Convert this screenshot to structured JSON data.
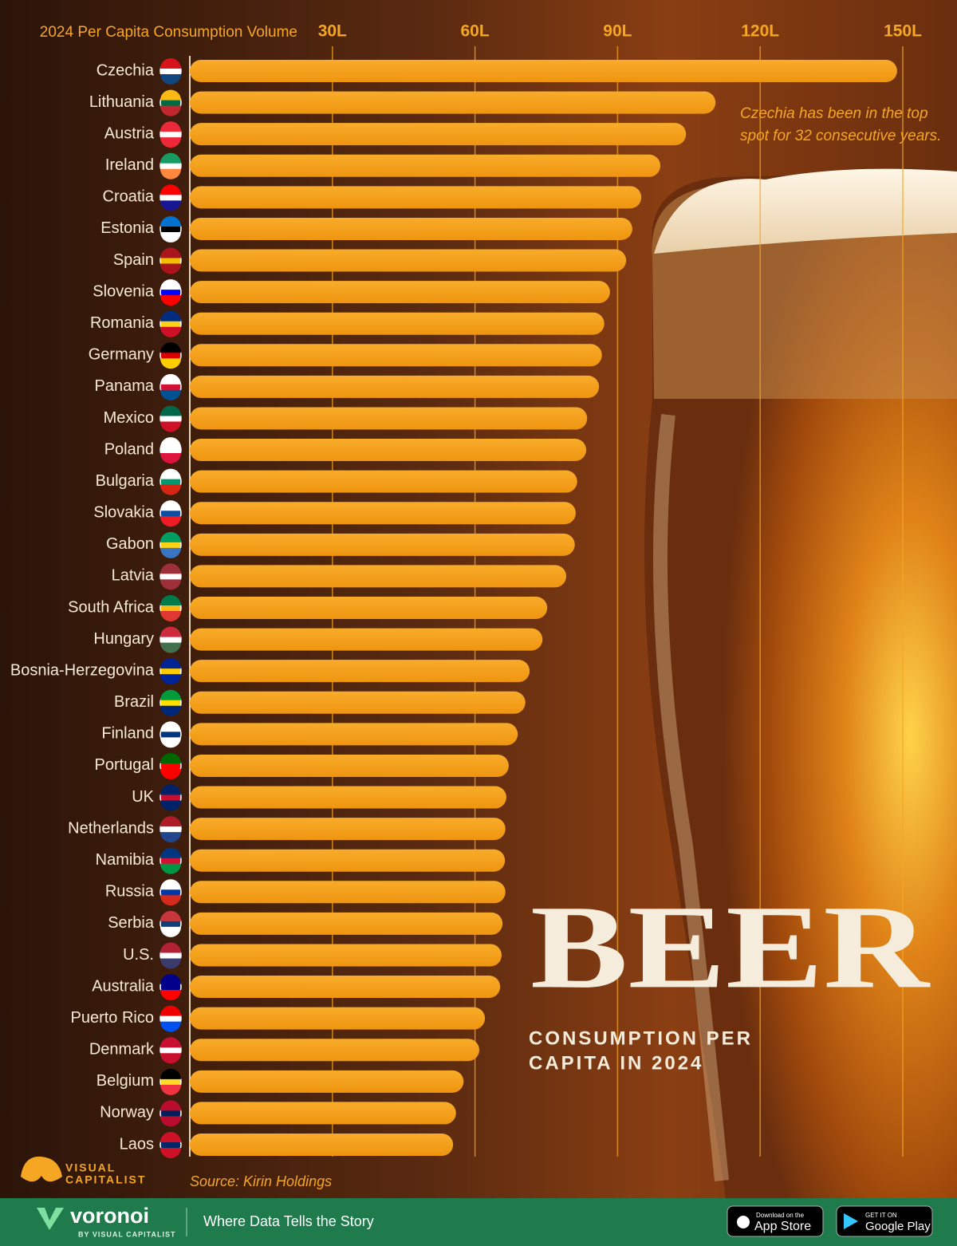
{
  "chart_data": {
    "type": "bar",
    "orientation": "horizontal",
    "xlabel": "2024 Per Capita Consumption Volume",
    "categories": [
      "Czechia",
      "Lithuania",
      "Austria",
      "Ireland",
      "Croatia",
      "Estonia",
      "Spain",
      "Slovenia",
      "Romania",
      "Germany",
      "Panama",
      "Mexico",
      "Poland",
      "Bulgaria",
      "Slovakia",
      "Gabon",
      "Latvia",
      "South Africa",
      "Hungary",
      "Bosnia-Herzegovina",
      "Brazil",
      "Finland",
      "Portugal",
      "UK",
      "Netherlands",
      "Namibia",
      "Russia",
      "Serbia",
      "U.S.",
      "Australia",
      "Puerto Rico",
      "Denmark",
      "Belgium",
      "Norway",
      "Laos"
    ],
    "values": [
      148.8,
      110.6,
      104.4,
      99.0,
      95.0,
      93.1,
      91.8,
      88.4,
      87.2,
      86.7,
      86.1,
      83.6,
      83.4,
      81.5,
      81.2,
      81.0,
      79.2,
      75.2,
      74.2,
      71.5,
      70.6,
      69.0,
      67.1,
      66.6,
      66.4,
      66.3,
      66.4,
      65.8,
      65.6,
      65.3,
      62.1,
      60.9,
      57.6,
      56.0,
      55.4
    ],
    "color": "#f59f1b",
    "xlim": [
      0,
      150
    ],
    "xticks": [
      {
        "value": 30,
        "label": "30L"
      },
      {
        "value": 60,
        "label": "60L"
      },
      {
        "value": 90,
        "label": "90L"
      },
      {
        "value": 120,
        "label": "120L"
      },
      {
        "value": 150,
        "label": "150L"
      }
    ],
    "grid": true,
    "annotation": [
      "Czechia has been in the top",
      "spot for 32 consecutive years."
    ],
    "title": "BEER",
    "subtitle": [
      "CONSUMPTION PER",
      "CAPITA IN 2024"
    ],
    "source": "Source: Kirin Holdings"
  },
  "branding": {
    "logo": [
      "VISUAL",
      "CAPITALIST"
    ]
  },
  "footer": {
    "brand": "voronoi",
    "byline": "BY VISUAL CAPITALIST",
    "tagline": "Where Data Tells the Story",
    "app_store": [
      "Download on the",
      "App Store"
    ],
    "google_play": [
      "GET IT ON",
      "Google Play"
    ]
  }
}
